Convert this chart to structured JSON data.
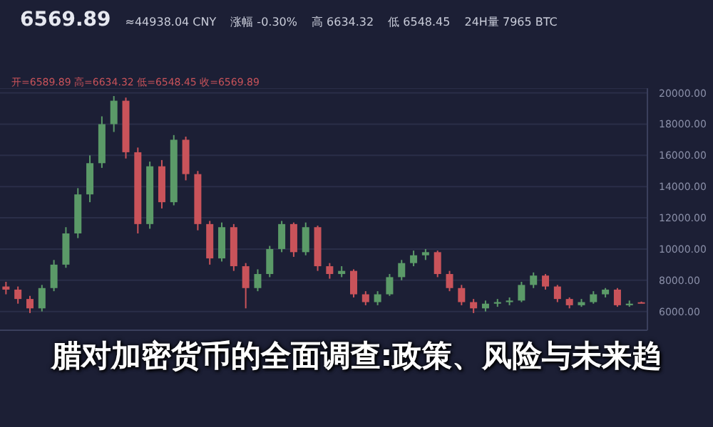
{
  "chart_data": {
    "type": "candlestick",
    "title": "腊对加密货币的全面调查:政策、风险与未来趋",
    "annotations": [
      "6569.89",
      "≈44938.04 CNY",
      "涨幅 -0.30%",
      "高 6634.32",
      "低 6548.45",
      "24H量 7965 BTC",
      "开=6589.89 高=6634.32 低=6548.45 收=6569.89"
    ],
    "categories": [
      null,
      null,
      null,
      null,
      null,
      null,
      null,
      null,
      null,
      null,
      null,
      null,
      null,
      null,
      null,
      null,
      null,
      null,
      null,
      null,
      null,
      null,
      null,
      null,
      null,
      null,
      null,
      null,
      null,
      null,
      null,
      null,
      null,
      null,
      null,
      null,
      null,
      null,
      null,
      null,
      null,
      null,
      null,
      null,
      null,
      null,
      null,
      null,
      null,
      null,
      null,
      null,
      null,
      null
    ],
    "ohlc": [
      [
        7600,
        7900,
        7100,
        7400
      ],
      [
        7400,
        7600,
        6500,
        6800
      ],
      [
        6800,
        7000,
        5900,
        6200
      ],
      [
        6200,
        7700,
        6000,
        7500
      ],
      [
        7500,
        9300,
        7300,
        9000
      ],
      [
        9000,
        11400,
        8800,
        11000
      ],
      [
        11000,
        13900,
        10700,
        13500
      ],
      [
        13500,
        16000,
        13000,
        15500
      ],
      [
        15500,
        18500,
        15200,
        18000
      ],
      [
        18000,
        19800,
        17500,
        19500
      ],
      [
        19500,
        19700,
        15800,
        16200
      ],
      [
        16200,
        16500,
        11000,
        11600
      ],
      [
        11600,
        15600,
        11300,
        15300
      ],
      [
        15300,
        15700,
        12600,
        13000
      ],
      [
        13000,
        17300,
        12800,
        17000
      ],
      [
        17000,
        17200,
        14400,
        14800
      ],
      [
        14800,
        15000,
        11200,
        11600
      ],
      [
        11600,
        11800,
        9000,
        9400
      ],
      [
        9400,
        11700,
        9200,
        11400
      ],
      [
        11400,
        11600,
        8600,
        8900
      ],
      [
        8900,
        9100,
        6200,
        7500
      ],
      [
        7500,
        8700,
        7300,
        8400
      ],
      [
        8400,
        10200,
        8200,
        10000
      ],
      [
        10000,
        11800,
        9800,
        11600
      ],
      [
        11600,
        11700,
        9500,
        9800
      ],
      [
        9800,
        11700,
        9600,
        11400
      ],
      [
        11400,
        11500,
        8600,
        8900
      ],
      [
        8900,
        9100,
        8100,
        8400
      ],
      [
        8400,
        8900,
        8200,
        8600
      ],
      [
        8600,
        8700,
        6900,
        7100
      ],
      [
        7100,
        7300,
        6400,
        6600
      ],
      [
        6600,
        7300,
        6400,
        7100
      ],
      [
        7100,
        8400,
        7000,
        8200
      ],
      [
        8200,
        9300,
        8000,
        9100
      ],
      [
        9100,
        9900,
        8900,
        9600
      ],
      [
        9600,
        10000,
        9300,
        9800
      ],
      [
        9800,
        9900,
        8200,
        8400
      ],
      [
        8400,
        8600,
        7300,
        7500
      ],
      [
        7500,
        7700,
        6400,
        6600
      ],
      [
        6600,
        6800,
        5900,
        6200
      ],
      [
        6200,
        6700,
        6000,
        6500
      ],
      [
        6500,
        6800,
        6300,
        6600
      ],
      [
        6600,
        6900,
        6400,
        6700
      ],
      [
        6700,
        7900,
        6600,
        7700
      ],
      [
        7700,
        8500,
        7500,
        8300
      ],
      [
        8300,
        8400,
        7400,
        7600
      ],
      [
        7600,
        7700,
        6600,
        6800
      ],
      [
        6800,
        6900,
        6200,
        6400
      ],
      [
        6400,
        6800,
        6300,
        6600
      ],
      [
        6600,
        7300,
        6500,
        7100
      ],
      [
        7100,
        7500,
        6900,
        7400
      ],
      [
        7400,
        7500,
        6300,
        6400
      ],
      [
        6400,
        6700,
        6300,
        6500
      ],
      [
        6589.89,
        6634.32,
        6548.45,
        6569.89
      ]
    ],
    "colors": [
      "#c9535a",
      "#c9535a",
      "#c9535a",
      "#5b9a68",
      "#5b9a68",
      "#5b9a68",
      "#5b9a68",
      "#5b9a68",
      "#5b9a68",
      "#5b9a68",
      "#c9535a",
      "#c9535a",
      "#5b9a68",
      "#c9535a",
      "#5b9a68",
      "#c9535a",
      "#c9535a",
      "#c9535a",
      "#5b9a68",
      "#c9535a",
      "#c9535a",
      "#5b9a68",
      "#5b9a68",
      "#5b9a68",
      "#c9535a",
      "#5b9a68",
      "#c9535a",
      "#c9535a",
      "#5b9a68",
      "#c9535a",
      "#c9535a",
      "#5b9a68",
      "#5b9a68",
      "#5b9a68",
      "#5b9a68",
      "#5b9a68",
      "#c9535a",
      "#c9535a",
      "#c9535a",
      "#c9535a",
      "#5b9a68",
      "#5b9a68",
      "#5b9a68",
      "#5b9a68",
      "#5b9a68",
      "#c9535a",
      "#c9535a",
      "#c9535a",
      "#5b9a68",
      "#5b9a68",
      "#5b9a68",
      "#c9535a",
      "#5b9a68",
      "#c9535a"
    ],
    "ylim": [
      4800,
      20300
    ],
    "yticks": [
      {
        "value": 6000,
        "label": "6000.00"
      },
      {
        "value": 8000,
        "label": "8000.00"
      },
      {
        "value": 10000,
        "label": "10000.00"
      },
      {
        "value": 12000,
        "label": "12000.00"
      },
      {
        "value": 14000,
        "label": "14000.00"
      },
      {
        "value": 16000,
        "label": "16000.00"
      },
      {
        "value": 18000,
        "label": "18000.00"
      },
      {
        "value": 20000,
        "label": "20000.00"
      }
    ],
    "grid": "y"
  }
}
